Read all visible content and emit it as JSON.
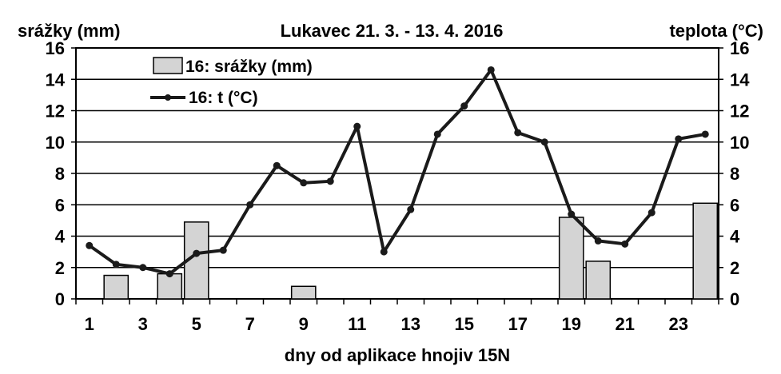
{
  "chart_data": {
    "type": "bar",
    "title": "Lukavec 21. 3. - 13. 4. 2016",
    "ylabel_left": "srážky (mm)",
    "ylabel_right": "teplota (°C)",
    "xlabel": "dny od aplikace hnojiv 15N",
    "x": [
      1,
      2,
      3,
      4,
      5,
      6,
      7,
      8,
      9,
      10,
      11,
      12,
      13,
      14,
      15,
      16,
      17,
      18,
      19,
      20,
      21,
      22,
      23,
      24
    ],
    "x_tick_labels": [
      "1",
      "3",
      "5",
      "7",
      "9",
      "11",
      "13",
      "15",
      "17",
      "19",
      "21",
      "23"
    ],
    "y_tick_labels": [
      "0",
      "2",
      "4",
      "6",
      "8",
      "10",
      "12",
      "14",
      "16"
    ],
    "ylim_left": [
      0,
      16
    ],
    "ylim_right": [
      0,
      16
    ],
    "grid": true,
    "legend_position": "top-left",
    "series": [
      {
        "name": "16: srážky (mm)",
        "type": "bar",
        "axis": "left",
        "color": "#d4d4d4",
        "values": [
          0,
          1.5,
          0,
          1.6,
          4.9,
          0,
          0,
          0,
          0.8,
          0,
          0,
          0,
          0,
          0,
          0,
          0,
          0,
          0,
          5.2,
          2.4,
          0,
          0,
          0,
          6.1
        ]
      },
      {
        "name": "16: t (°C)",
        "type": "line",
        "axis": "right",
        "color": "#1a1a1a",
        "values": [
          3.4,
          2.2,
          2.0,
          1.6,
          2.9,
          3.1,
          6.0,
          8.5,
          7.4,
          7.5,
          11.0,
          3.0,
          5.7,
          10.5,
          12.3,
          14.6,
          10.6,
          10.0,
          5.4,
          3.7,
          3.5,
          5.5,
          10.2,
          10.5
        ]
      }
    ]
  }
}
